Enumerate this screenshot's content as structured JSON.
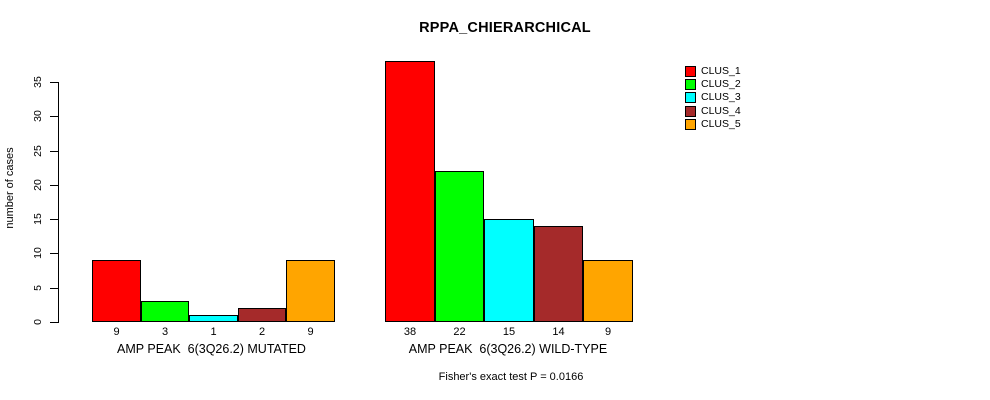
{
  "page": {
    "background": "#FFFFFF",
    "text_color": "#000000"
  },
  "chart_data": {
    "type": "bar",
    "title": "RPPA_CHIERARCHICAL",
    "ylabel": "number of cases",
    "xlabel": "",
    "ylim": [
      0,
      38
    ],
    "yticks": [
      0,
      5,
      10,
      15,
      20,
      25,
      30,
      35
    ],
    "grid": false,
    "legend_position": "top-right",
    "series": [
      {
        "name": "CLUS_1",
        "color": "#FF0000",
        "values": [
          9,
          38
        ]
      },
      {
        "name": "CLUS_2",
        "color": "#00FF00",
        "values": [
          3,
          22
        ]
      },
      {
        "name": "CLUS_3",
        "color": "#00FFFF",
        "values": [
          1,
          15
        ]
      },
      {
        "name": "CLUS_4",
        "color": "#A52A2A",
        "values": [
          2,
          14
        ]
      },
      {
        "name": "CLUS_5",
        "color": "#FFA500",
        "values": [
          9,
          9
        ]
      }
    ],
    "groups": [
      {
        "label": "AMP PEAK  6(3Q26.2) MUTATED",
        "values": [
          9,
          3,
          1,
          2,
          9
        ]
      },
      {
        "label": "AMP PEAK  6(3Q26.2) WILD-TYPE",
        "values": [
          38,
          22,
          15,
          14,
          9
        ]
      }
    ],
    "bar_border_color": "#000000",
    "annotation": "Fisher's exact test P = 0.0166"
  }
}
